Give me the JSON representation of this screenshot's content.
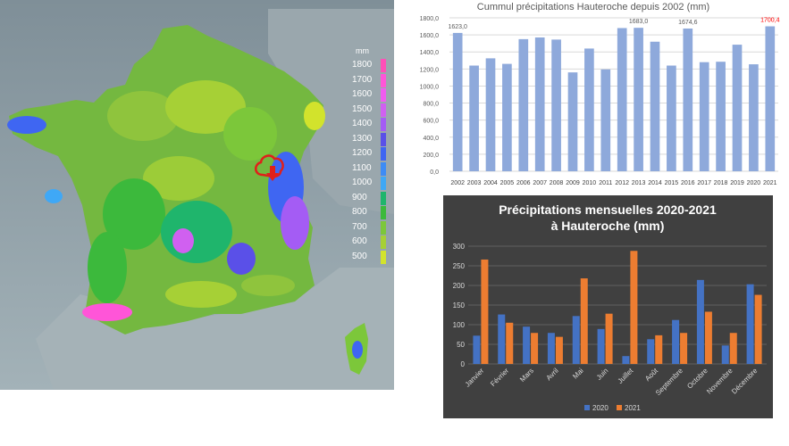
{
  "map": {
    "unit": "mm",
    "legend": [
      {
        "label": "1800",
        "color": "#ff4fb8"
      },
      {
        "label": "1700",
        "color": "#ff55d8"
      },
      {
        "label": "1600",
        "color": "#f05cf0"
      },
      {
        "label": "1500",
        "color": "#d060f0"
      },
      {
        "label": "1400",
        "color": "#a45cf4"
      },
      {
        "label": "1300",
        "color": "#5a50e8"
      },
      {
        "label": "1200",
        "color": "#3f66f2"
      },
      {
        "label": "1100",
        "color": "#3e8cf5"
      },
      {
        "label": "1000",
        "color": "#3fa8f6"
      },
      {
        "label": "900",
        "color": "#1fb56c"
      },
      {
        "label": "800",
        "color": "#3cb93c"
      },
      {
        "label": "700",
        "color": "#7cc73a"
      },
      {
        "label": "600",
        "color": "#a6d036"
      },
      {
        "label": "500",
        "color": "#d2e32c"
      }
    ]
  },
  "chart_data": [
    {
      "type": "bar",
      "title": "Cummul précipitations Hauteroche depuis 2002 (mm)",
      "categories": [
        "2002",
        "2003",
        "2004",
        "2005",
        "2006",
        "2007",
        "2008",
        "2009",
        "2010",
        "2011",
        "2012",
        "2013",
        "2014",
        "2015",
        "2016",
        "2017",
        "2018",
        "2019",
        "2020",
        "2021"
      ],
      "values": [
        1623.0,
        1240,
        1325,
        1260,
        1550,
        1570,
        1545,
        1160,
        1440,
        1195,
        1680,
        1683.0,
        1520,
        1240,
        1674.6,
        1280,
        1285,
        1485,
        1255,
        1700.4
      ],
      "data_labels": [
        {
          "index": 0,
          "text": "1623,0",
          "color": "#595959"
        },
        {
          "index": 11,
          "text": "1683,0",
          "color": "#595959"
        },
        {
          "index": 14,
          "text": "1674,6",
          "color": "#595959"
        },
        {
          "index": 19,
          "text": "1700,4",
          "color": "#ff0000"
        }
      ],
      "ylim": [
        0,
        1800
      ],
      "yticks": [
        "0,0",
        "200,0",
        "400,0",
        "600,0",
        "800,0",
        "1000,0",
        "1200,0",
        "1400,0",
        "1600,0",
        "1800,0"
      ],
      "grid": true,
      "bar_color": "#8ea9db",
      "xlabel": "",
      "ylabel": ""
    },
    {
      "type": "bar",
      "title": "Précipitations mensuelles 2020-2021",
      "subtitle": "à Hauteroche (mm)",
      "categories": [
        "Janvier",
        "Février",
        "Mars",
        "Avril",
        "Mai",
        "Juin",
        "Juillet",
        "Août",
        "Septembre",
        "Octobre",
        "Novembre",
        "Décembre"
      ],
      "series": [
        {
          "name": "2020",
          "color": "#4472c4",
          "values": [
            72,
            126,
            95,
            79,
            122,
            89,
            20,
            63,
            112,
            214,
            47,
            203
          ]
        },
        {
          "name": "2021",
          "color": "#ed7d31",
          "values": [
            266,
            105,
            79,
            69,
            218,
            128,
            288,
            73,
            79,
            133,
            79,
            176
          ]
        }
      ],
      "ylim": [
        0,
        300
      ],
      "yticks": [
        "0",
        "50",
        "100",
        "150",
        "200",
        "250",
        "300"
      ],
      "grid": true,
      "legend_position": "bottom",
      "xlabel": "",
      "ylabel": ""
    }
  ]
}
